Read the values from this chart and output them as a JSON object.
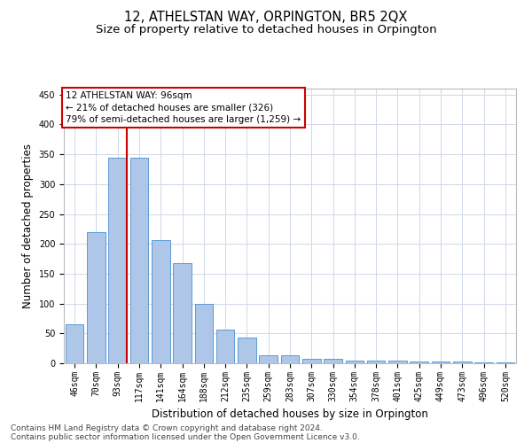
{
  "title": "12, ATHELSTAN WAY, ORPINGTON, BR5 2QX",
  "subtitle": "Size of property relative to detached houses in Orpington",
  "xlabel": "Distribution of detached houses by size in Orpington",
  "ylabel": "Number of detached properties",
  "categories": [
    "46sqm",
    "70sqm",
    "93sqm",
    "117sqm",
    "141sqm",
    "164sqm",
    "188sqm",
    "212sqm",
    "235sqm",
    "259sqm",
    "283sqm",
    "307sqm",
    "330sqm",
    "354sqm",
    "378sqm",
    "401sqm",
    "425sqm",
    "449sqm",
    "473sqm",
    "496sqm",
    "520sqm"
  ],
  "bar_values": [
    65,
    220,
    345,
    345,
    207,
    167,
    99,
    57,
    43,
    13,
    13,
    8,
    7,
    5,
    5,
    5,
    3,
    3,
    3,
    2,
    2
  ],
  "bar_color": "#aec6e8",
  "bar_edge_color": "#5b9bd5",
  "vline_color": "#cc0000",
  "ylim": [
    0,
    460
  ],
  "yticks": [
    0,
    50,
    100,
    150,
    200,
    250,
    300,
    350,
    400,
    450
  ],
  "annotation_title": "12 ATHELSTAN WAY: 96sqm",
  "annotation_line1": "← 21% of detached houses are smaller (326)",
  "annotation_line2": "79% of semi-detached houses are larger (1,259) →",
  "annotation_box_color": "#ffffff",
  "annotation_box_edge": "#cc0000",
  "footer1": "Contains HM Land Registry data © Crown copyright and database right 2024.",
  "footer2": "Contains public sector information licensed under the Open Government Licence v3.0.",
  "bg_color": "#ffffff",
  "grid_color": "#d0d8e8",
  "title_fontsize": 10.5,
  "subtitle_fontsize": 9.5,
  "axis_label_fontsize": 8.5,
  "tick_fontsize": 7,
  "annotation_fontsize": 7.5,
  "footer_fontsize": 6.5
}
